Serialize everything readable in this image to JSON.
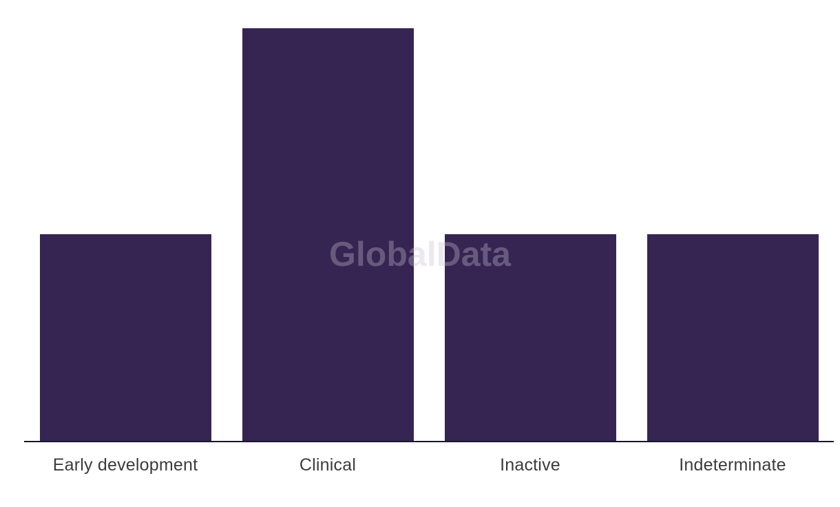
{
  "chart_data": {
    "type": "bar",
    "title": "",
    "xlabel": "",
    "ylabel": "",
    "categories": [
      "Early development",
      "Clinical",
      "Inactive",
      "Indeterminate"
    ],
    "values": [
      1,
      2,
      1,
      1
    ],
    "y_axis_visible": false,
    "gridlines": false,
    "legend": false,
    "bar_color": "#362553",
    "axis_line_color": "#17172b",
    "label_color": "#3c3c3c",
    "background_color": "#ffffff",
    "watermark": "GlobalData",
    "watermark_color": "#c6c1d0",
    "watermark_opacity": 0.34
  }
}
